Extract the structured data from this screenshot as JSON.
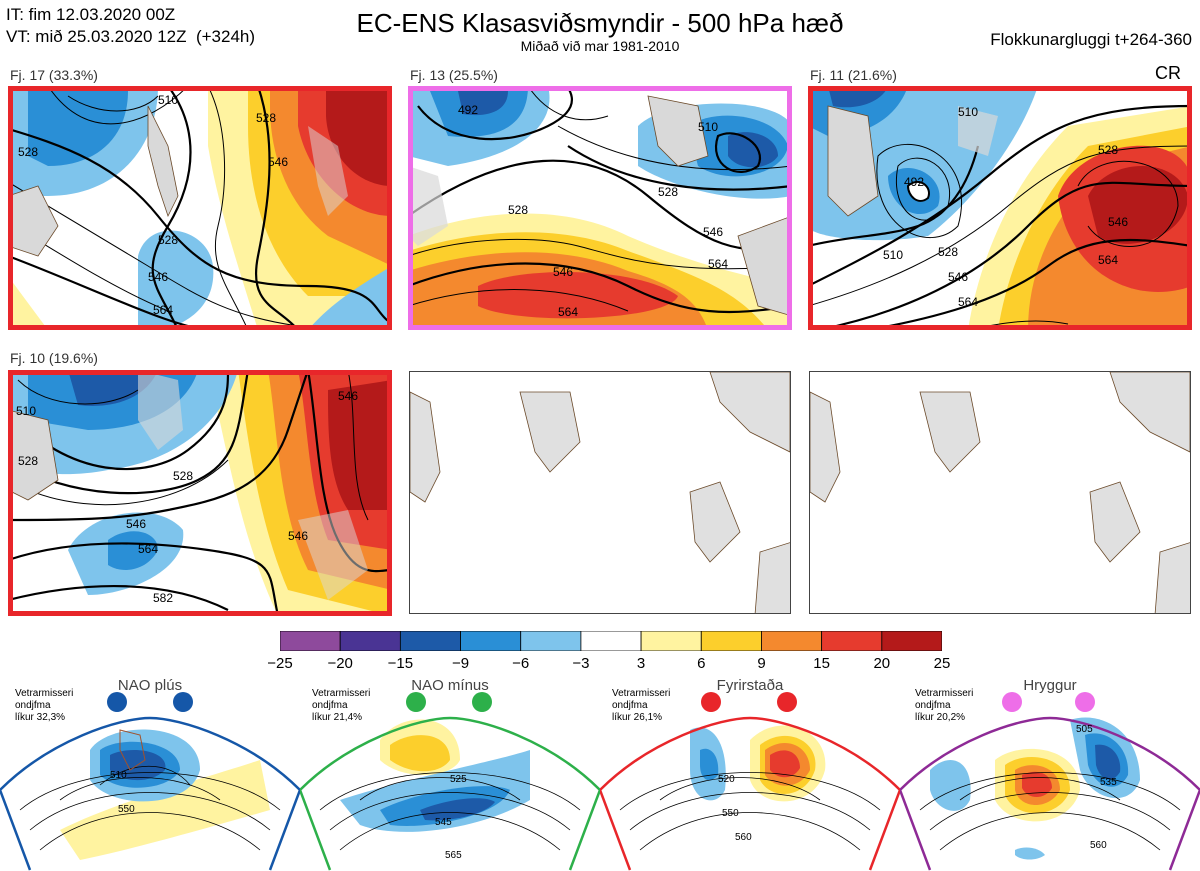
{
  "header": {
    "it_line": "IT: fim 12.03.2020 00Z",
    "vt_line": "VT: mið 25.03.2020 12Z  (+324h)",
    "title": "EC-ENS Klasasviðsmyndir - 500 hPa hæð",
    "subtitle": "Miðað við mar 1981-2010",
    "window": "Flokkunargluggi t+264-360",
    "cr": "CR"
  },
  "clusters": [
    {
      "label": "Fj. 17 (33.3%)",
      "border_color": "#e8262a"
    },
    {
      "label": "Fj. 13 (25.5%)",
      "border_color": "#ee6ee8"
    },
    {
      "label": "Fj. 11 (21.6%)",
      "border_color": "#e8262a"
    },
    {
      "label": "Fj. 10 (19.6%)",
      "border_color": "#e8262a"
    }
  ],
  "contour_labels": {
    "c1": [
      "510",
      "528",
      "546",
      "528",
      "546",
      "564",
      "528"
    ],
    "c2": [
      "492",
      "510",
      "528",
      "528",
      "546",
      "546",
      "564",
      "564"
    ],
    "c3": [
      "510",
      "492",
      "510",
      "528",
      "546",
      "546",
      "564",
      "564",
      "528"
    ],
    "c4": [
      "510",
      "528",
      "528",
      "546",
      "564",
      "546",
      "582",
      "546"
    ]
  },
  "colorbar": {
    "colors": [
      "#8e4a9c",
      "#4a3494",
      "#1d5aa8",
      "#2a8fd6",
      "#7ec4ec",
      "#ffffff",
      "#fff3a0",
      "#fccf2c",
      "#f4892e",
      "#e63b2e",
      "#b41a1a"
    ],
    "labels": [
      "−25",
      "−20",
      "−15",
      "−9",
      "−6",
      "−3",
      "3",
      "6",
      "9",
      "15",
      "20",
      "25"
    ]
  },
  "regimes": [
    {
      "title": "NAO plús",
      "note": "Vetrarmisseri\nondjfma\nlíkur 32,3%",
      "color": "#1557a8",
      "labels": [
        "510",
        "550"
      ]
    },
    {
      "title": "NAO mínus",
      "note": "Vetrarmisseri\nondjfma\nlíkur 21,4%",
      "color": "#2db04a",
      "labels": [
        "525",
        "545",
        "565"
      ]
    },
    {
      "title": "Fyrirstaða",
      "note": "Vetrarmisseri\nondjfma\nlíkur 26,1%",
      "color": "#e8262a",
      "labels": [
        "520",
        "550",
        "560"
      ]
    },
    {
      "title": "Hryggur",
      "note": "Vetrarmisseri\nondjfma\nlíkur 20,2%",
      "color": "#ee6ee8",
      "labels": [
        "505",
        "535",
        "560"
      ]
    }
  ],
  "chart_data": {
    "type": "heatmap",
    "title": "EC-ENS Klasasviðsmyndir - 500 hPa hæð",
    "colorbar_levels": [
      -25,
      -20,
      -15,
      -9,
      -6,
      -3,
      3,
      6,
      9,
      15,
      20,
      25
    ],
    "clusters": [
      {
        "name": "Fj. 17",
        "percent": 33.3
      },
      {
        "name": "Fj. 13",
        "percent": 25.5
      },
      {
        "name": "Fj. 11",
        "percent": 21.6
      },
      {
        "name": "Fj. 10",
        "percent": 19.6
      }
    ],
    "regimes": [
      {
        "name": "NAO plús",
        "probability_percent": 32.3
      },
      {
        "name": "NAO mínus",
        "probability_percent": 21.4
      },
      {
        "name": "Fyrirstaða",
        "probability_percent": 26.1
      },
      {
        "name": "Hryggur",
        "probability_percent": 20.2
      }
    ]
  }
}
